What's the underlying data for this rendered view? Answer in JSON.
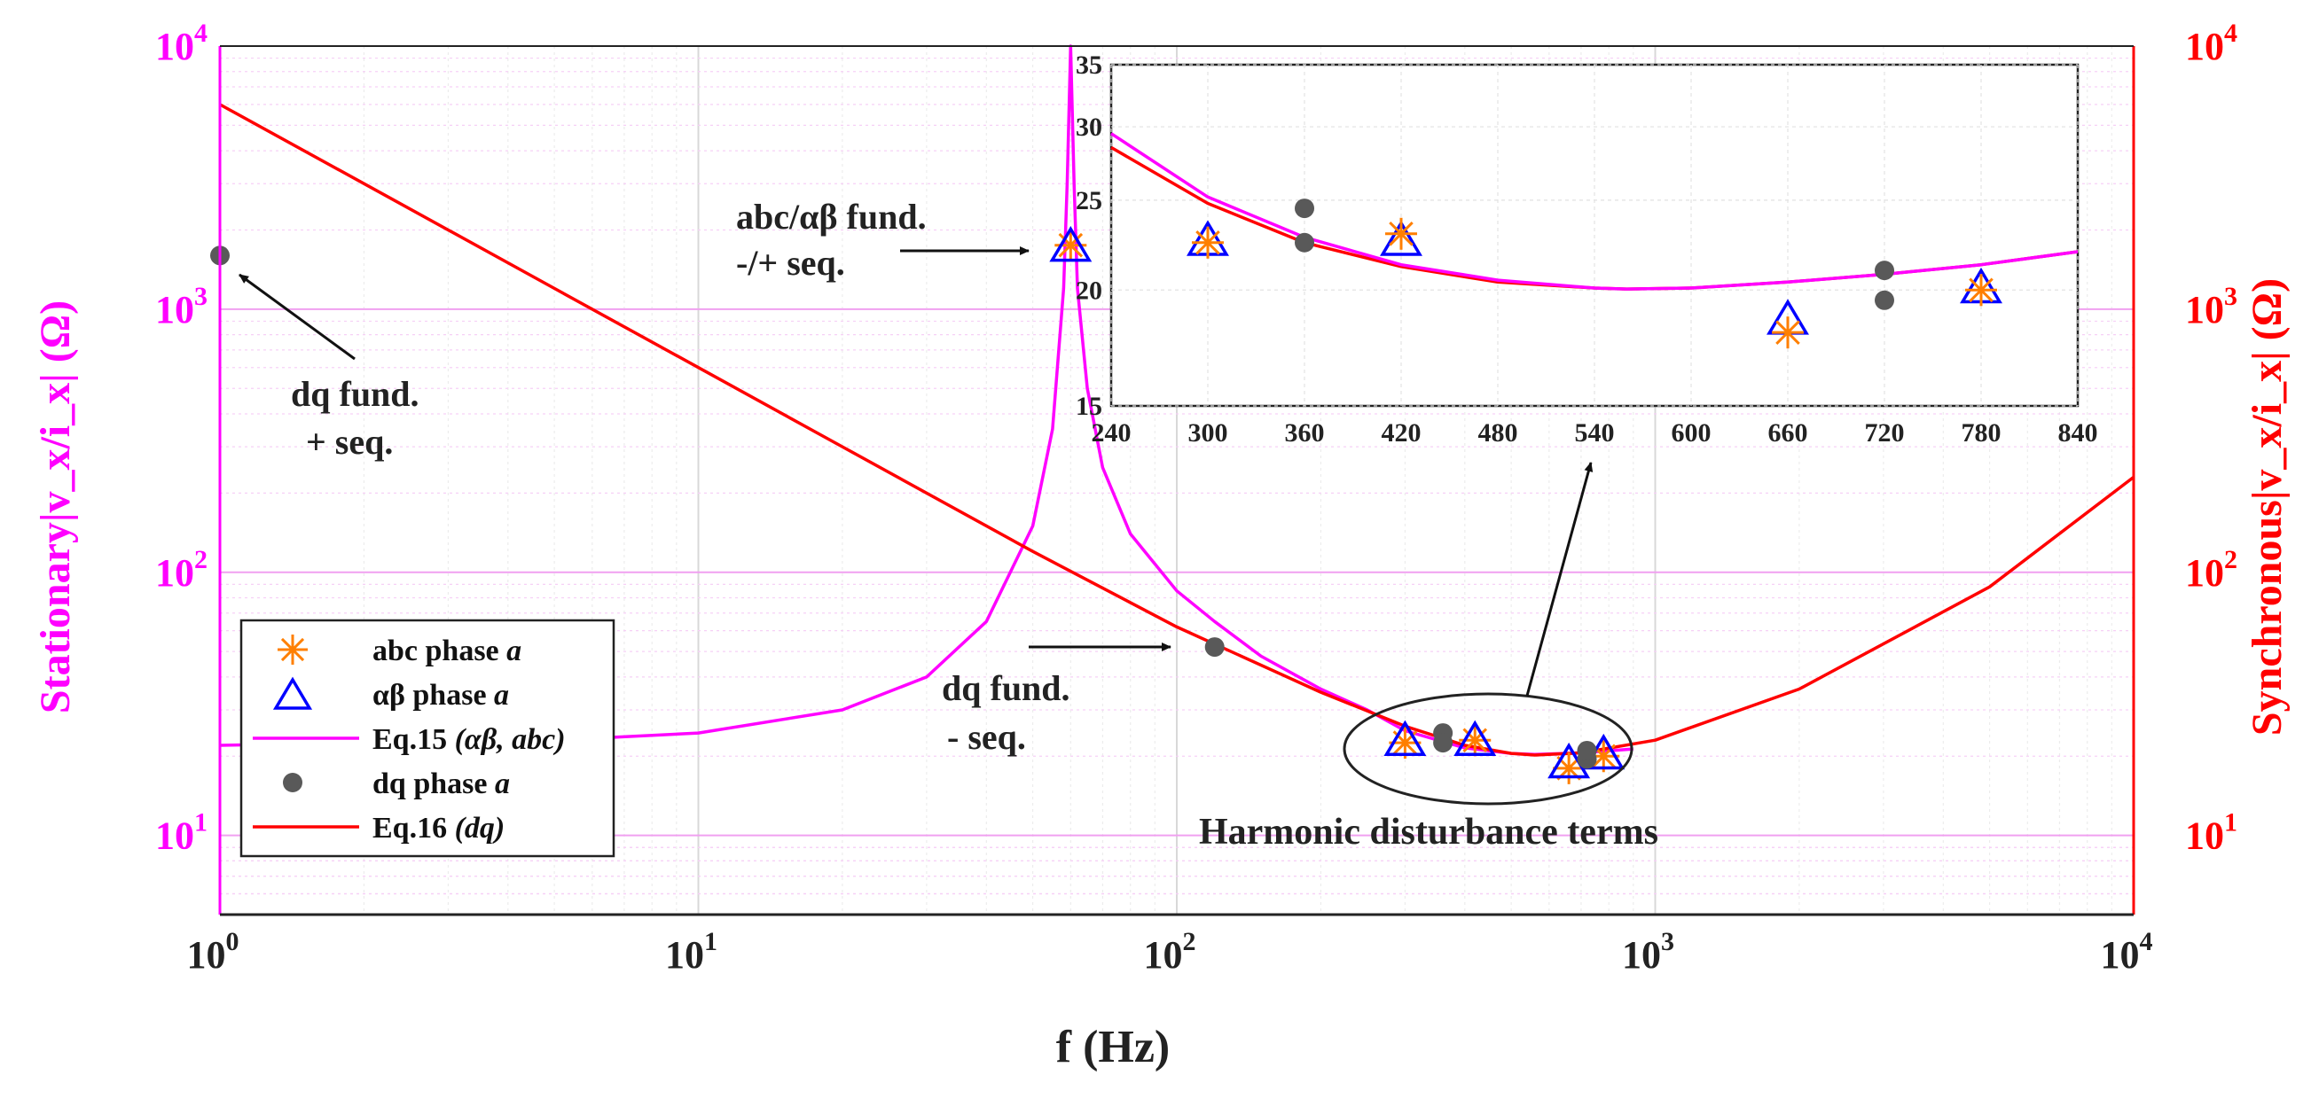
{
  "chart_data": {
    "type": "line",
    "xscale": "log",
    "yscale": "log",
    "xlim": [
      1,
      10000
    ],
    "ylim": [
      5,
      10000
    ],
    "xlabel": "f (Hz)",
    "ylabel_left": "Stationary|v_x/i_x| (Ω)",
    "ylabel_right": "Synchronous|v_x/i_x| (Ω)",
    "grid": true,
    "x_ticks": [
      {
        "base": "10",
        "exp": "0",
        "value": 1
      },
      {
        "base": "10",
        "exp": "1",
        "value": 10
      },
      {
        "base": "10",
        "exp": "2",
        "value": 100
      },
      {
        "base": "10",
        "exp": "3",
        "value": 1000
      },
      {
        "base": "10",
        "exp": "4",
        "value": 10000
      }
    ],
    "y_ticks": [
      {
        "base": "10",
        "exp": "1",
        "value": 10
      },
      {
        "base": "10",
        "exp": "2",
        "value": 100
      },
      {
        "base": "10",
        "exp": "3",
        "value": 1000
      },
      {
        "base": "10",
        "exp": "4",
        "value": 10000
      }
    ],
    "series": [
      {
        "name": "Eq.15",
        "italic": "(αβ, abc)",
        "kind": "line",
        "color": "#ff00ff",
        "x": [
          1,
          2,
          5,
          10,
          20,
          30,
          40,
          50,
          55,
          58,
          59,
          60,
          61,
          62,
          65,
          70,
          80,
          100,
          120,
          150,
          200,
          250,
          300,
          400,
          500,
          560,
          700,
          900
        ],
        "y": [
          22,
          22.5,
          23,
          24.5,
          30,
          40,
          65,
          150,
          350,
          1200,
          3000,
          10000,
          3000,
          1200,
          500,
          250,
          140,
          85,
          65,
          48,
          36,
          30,
          25,
          21.5,
          20.5,
          20.3,
          20.6,
          21.3
        ]
      },
      {
        "name": "Eq.16",
        "italic": "(dq)",
        "kind": "line",
        "color": "#ff0000",
        "x": [
          1,
          2,
          5,
          10,
          20,
          50,
          100,
          200,
          300,
          400,
          500,
          560,
          700,
          1000,
          2000,
          5000,
          10000
        ],
        "y": [
          6000,
          3000,
          1200,
          600,
          300,
          120,
          62,
          35,
          26,
          22,
          20.5,
          20.2,
          20.6,
          23,
          36,
          88,
          230
        ]
      },
      {
        "name": "abc phase",
        "italic": "a",
        "kind": "star",
        "color": "#ff7f00",
        "x": [
          60,
          300,
          420,
          660,
          780
        ],
        "y": [
          1750,
          22.5,
          23,
          18,
          20
        ]
      },
      {
        "name": "αβ phase",
        "italic": "a",
        "kind": "triangle",
        "color": "#0000ff",
        "x": [
          60,
          300,
          420,
          660,
          780
        ],
        "y": [
          1700,
          22.5,
          22.5,
          18.5,
          20
        ]
      },
      {
        "name": "dq phase",
        "italic": "a",
        "kind": "dot",
        "color": "#595959",
        "x": [
          1,
          120,
          360,
          360,
          720,
          720
        ],
        "y": [
          1600,
          52,
          24.5,
          22.5,
          19.5,
          21
        ]
      }
    ],
    "inset": {
      "xlim": [
        240,
        840
      ],
      "ylim": [
        15,
        35
      ],
      "x_ticks": [
        "240",
        "300",
        "360",
        "420",
        "480",
        "540",
        "600",
        "660",
        "720",
        "780",
        "840"
      ],
      "y_ticks": [
        "15",
        "20",
        "25",
        "30",
        "35"
      ],
      "eq15_x": [
        240,
        300,
        360,
        420,
        480,
        540,
        560,
        600,
        660,
        720,
        780,
        840
      ],
      "eq15_y": [
        29.5,
        25.2,
        22.8,
        21.3,
        20.5,
        20.1,
        20.05,
        20.1,
        20.4,
        20.8,
        21.3,
        22.0
      ],
      "eq16_x": [
        240,
        300,
        360,
        420,
        480,
        540,
        560,
        600,
        660,
        720,
        780,
        840
      ],
      "eq16_y": [
        28.5,
        24.8,
        22.5,
        21.2,
        20.4,
        20.1,
        20.05,
        20.1,
        20.4,
        20.8,
        21.3,
        22.0
      ],
      "abc_x": [
        300,
        420,
        660,
        780
      ],
      "abc_y": [
        22.5,
        23,
        18,
        20
      ],
      "ab_x": [
        300,
        420,
        660,
        780
      ],
      "ab_y": [
        22.5,
        22.5,
        18.5,
        20
      ],
      "dq_x": [
        360,
        360,
        720,
        720
      ],
      "dq_y": [
        24.5,
        22.5,
        19.5,
        21
      ]
    },
    "annotations": {
      "abc_fund_1": "abc/αβ fund.",
      "abc_fund_2": "-/+ seq.",
      "dq_plus_1": "dq fund.",
      "dq_plus_2": "+ seq.",
      "dq_minus_1": "dq fund.",
      "dq_minus_2": "- seq.",
      "harmonic": "Harmonic disturbance terms"
    }
  }
}
